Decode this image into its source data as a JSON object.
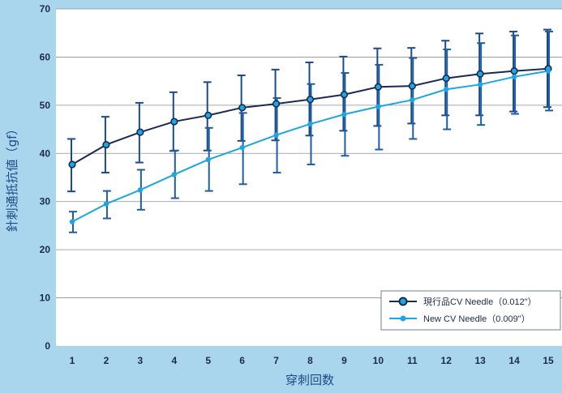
{
  "chart_data": {
    "type": "line",
    "xlabel": "穿刺回数",
    "ylabel": "針刺通抵抗値（gf）",
    "x": [
      1,
      2,
      3,
      4,
      5,
      6,
      7,
      8,
      9,
      10,
      11,
      12,
      13,
      14,
      15
    ],
    "ylim": [
      0,
      70
    ],
    "yticks": [
      0,
      10,
      20,
      30,
      40,
      50,
      60,
      70
    ],
    "grid": true,
    "legend_position": "bottom-right",
    "series": [
      {
        "name": "現行品CV Needle（0.012\"）",
        "color": "#1b2a55",
        "values": [
          37.7,
          41.8,
          44.4,
          46.6,
          47.9,
          49.5,
          50.3,
          51.2,
          52.2,
          53.8,
          54.0,
          55.6,
          56.5,
          57.1,
          57.6
        ],
        "err_low": [
          32.1,
          36.0,
          38.1,
          40.5,
          40.6,
          42.6,
          42.7,
          43.7,
          44.7,
          45.7,
          46.2,
          47.9,
          47.9,
          48.7,
          49.6
        ],
        "err_high": [
          43.0,
          47.6,
          50.5,
          52.7,
          54.8,
          56.2,
          57.4,
          58.9,
          60.1,
          61.8,
          61.9,
          63.4,
          64.9,
          65.3,
          65.7
        ]
      },
      {
        "name": "New CV Needle（0.009\"）",
        "color": "#1ea6e0",
        "values": [
          25.8,
          29.5,
          32.4,
          35.6,
          38.7,
          41.2,
          43.8,
          46.1,
          48.1,
          49.7,
          51.1,
          53.3,
          54.3,
          55.9,
          57.1
        ],
        "err_low": [
          23.6,
          26.5,
          28.3,
          30.7,
          32.2,
          33.6,
          36.0,
          37.7,
          39.5,
          40.8,
          43.0,
          45.0,
          45.9,
          48.2,
          48.9
        ],
        "err_high": [
          27.9,
          32.2,
          36.6,
          40.6,
          45.3,
          48.4,
          51.5,
          54.4,
          56.7,
          58.4,
          59.8,
          61.6,
          62.9,
          64.5,
          65.3
        ]
      }
    ]
  }
}
